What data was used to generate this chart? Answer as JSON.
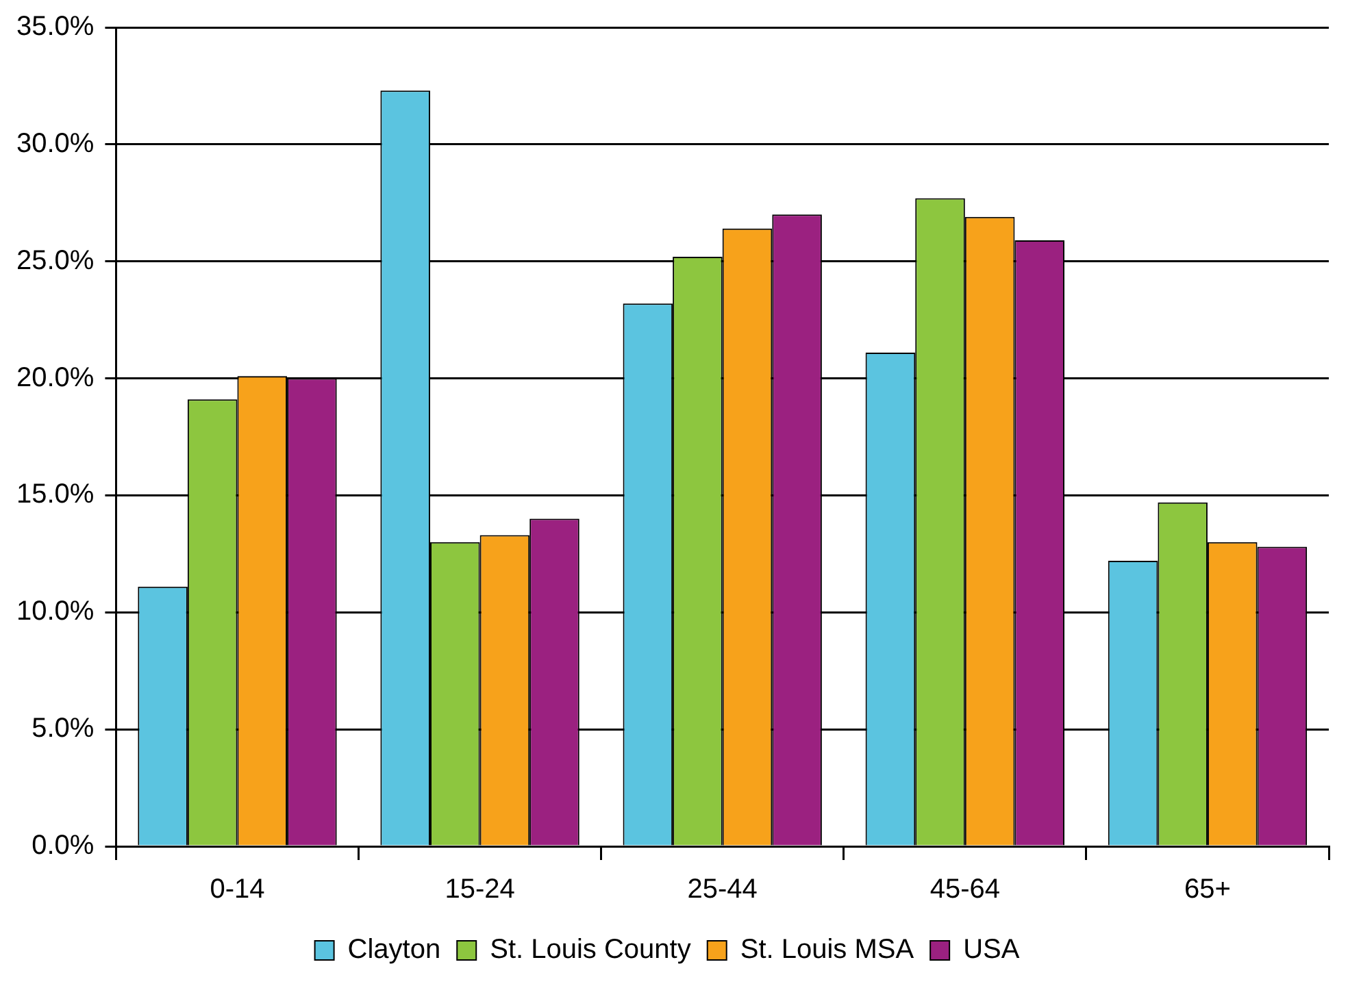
{
  "chart_data": {
    "type": "bar",
    "categories": [
      "0-14",
      "15-24",
      "25-44",
      "45-64",
      "65+"
    ],
    "series": [
      {
        "name": "Clayton",
        "color": "#5bc4e0",
        "values": [
          11.1,
          32.3,
          23.2,
          21.1,
          12.2
        ]
      },
      {
        "name": "St. Louis County",
        "color": "#8dc63f",
        "values": [
          19.1,
          13.0,
          25.2,
          27.7,
          14.7
        ]
      },
      {
        "name": "St. Louis MSA",
        "color": "#f7a21b",
        "values": [
          20.1,
          13.3,
          26.4,
          26.9,
          13.0
        ]
      },
      {
        "name": "USA",
        "color": "#9b2180",
        "values": [
          20.0,
          14.0,
          27.0,
          25.9,
          12.8
        ]
      }
    ],
    "ylim": [
      0,
      35
    ],
    "yticks": [
      {
        "value": 0,
        "label": "0.0%"
      },
      {
        "value": 5,
        "label": "5.0%"
      },
      {
        "value": 10,
        "label": "10.0%"
      },
      {
        "value": 15,
        "label": "15.0%"
      },
      {
        "value": 20,
        "label": "20.0%"
      },
      {
        "value": 25,
        "label": "25.0%"
      },
      {
        "value": 30,
        "label": "30.0%"
      },
      {
        "value": 35,
        "label": "35.0%"
      }
    ],
    "grid": "y",
    "legend": "bottom"
  }
}
